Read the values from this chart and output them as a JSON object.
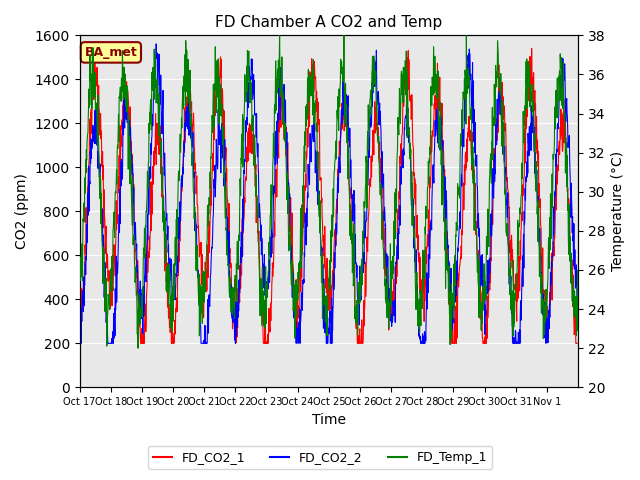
{
  "title": "FD Chamber A CO2 and Temp",
  "xlabel": "Time",
  "ylabel_left": "CO2 (ppm)",
  "ylabel_right": "Temperature (°C)",
  "ylim_left": [
    0,
    1600
  ],
  "ylim_right": [
    20,
    38
  ],
  "yticks_left": [
    0,
    200,
    400,
    600,
    800,
    1000,
    1200,
    1400,
    1600
  ],
  "yticks_right": [
    20,
    22,
    24,
    26,
    28,
    30,
    32,
    34,
    36,
    38
  ],
  "xtick_labels": [
    "Oct 17",
    "Oct 18",
    "Oct 19",
    "Oct 20",
    "Oct 21",
    "Oct 22",
    "Oct 23",
    "Oct 24",
    "Oct 25",
    "Oct 26",
    "Oct 27",
    "Oct 28",
    "Oct 29",
    "Oct 30",
    "Oct 31",
    "Nov 1"
  ],
  "n_days": 16,
  "legend_entries": [
    "FD_CO2_1",
    "FD_CO2_2",
    "FD_Temp_1"
  ],
  "line_colors": [
    "red",
    "blue",
    "green"
  ],
  "annotation_text": "BA_met",
  "annotation_bg": "#FFFF99",
  "annotation_border": "darkred",
  "bg_color": "#E8E8E8",
  "grid_color": "white",
  "seed": 42
}
